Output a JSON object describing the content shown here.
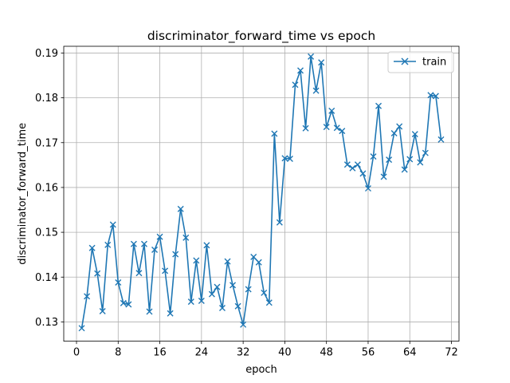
{
  "chart_data": {
    "type": "line",
    "title": "discriminator_forward_time vs epoch",
    "xlabel": "epoch",
    "ylabel": "discriminator_forward_time",
    "xlim": [
      -2.45,
      73.45
    ],
    "ylim": [
      0.1257,
      0.1915
    ],
    "xticks": [
      0,
      8,
      16,
      24,
      32,
      40,
      48,
      56,
      64,
      72
    ],
    "yticks": [
      0.13,
      0.14,
      0.15,
      0.16,
      0.17,
      0.18,
      0.19
    ],
    "grid": true,
    "legend_position": "top-right",
    "series": [
      {
        "name": "train",
        "color": "#1f77b4",
        "marker": "x",
        "x": [
          1,
          2,
          3,
          4,
          5,
          6,
          7,
          8,
          9,
          10,
          11,
          12,
          13,
          14,
          15,
          16,
          17,
          18,
          19,
          20,
          21,
          22,
          23,
          24,
          25,
          26,
          27,
          28,
          29,
          30,
          31,
          32,
          33,
          34,
          35,
          36,
          37,
          38,
          39,
          40,
          41,
          42,
          43,
          44,
          45,
          46,
          47,
          48,
          49,
          50,
          51,
          52,
          53,
          54,
          55,
          56,
          57,
          58,
          59,
          60,
          61,
          62,
          63,
          64,
          65,
          66,
          67,
          68,
          69,
          70
        ],
        "y": [
          0.1286,
          0.1357,
          0.1465,
          0.1408,
          0.1324,
          0.1472,
          0.1517,
          0.1388,
          0.1342,
          0.1339,
          0.1474,
          0.1409,
          0.1474,
          0.1323,
          0.1461,
          0.149,
          0.1414,
          0.1319,
          0.1451,
          0.1552,
          0.1488,
          0.1345,
          0.1437,
          0.1347,
          0.1471,
          0.1362,
          0.1378,
          0.1331,
          0.1435,
          0.1382,
          0.1335,
          0.1294,
          0.1373,
          0.1445,
          0.1433,
          0.1365,
          0.1343,
          0.172,
          0.1522,
          0.1665,
          0.1664,
          0.1829,
          0.1861,
          0.1732,
          0.1892,
          0.1816,
          0.1879,
          0.1735,
          0.1771,
          0.1733,
          0.1726,
          0.1651,
          0.1643,
          0.1651,
          0.1631,
          0.1598,
          0.1669,
          0.1782,
          0.1624,
          0.1662,
          0.1721,
          0.1736,
          0.164,
          0.1663,
          0.1719,
          0.1656,
          0.1677,
          0.1806,
          0.1804,
          0.1707
        ]
      }
    ]
  }
}
